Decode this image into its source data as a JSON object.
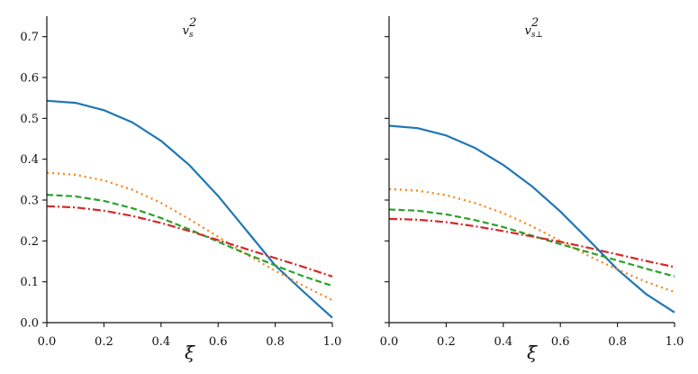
{
  "chart_data": [
    {
      "type": "line",
      "title": "v_s^2",
      "title_main": "v",
      "title_sub": "s",
      "title_sup": "2",
      "xlabel": "ξ̄",
      "ylabel": "",
      "xlim": [
        0,
        1
      ],
      "ylim": [
        0,
        0.75
      ],
      "xticks": [
        "0.0",
        "0.2",
        "0.4",
        "0.6",
        "0.8",
        "1.0"
      ],
      "yticks": [
        "0.0",
        "0.1",
        "0.2",
        "0.3",
        "0.4",
        "0.5",
        "0.6",
        "0.7"
      ],
      "grid": false,
      "legend": "none",
      "x": [
        0.0,
        0.1,
        0.2,
        0.3,
        0.4,
        0.5,
        0.6,
        0.7,
        0.8,
        0.9,
        1.0
      ],
      "series": [
        {
          "color": "#1f77b4",
          "style": "solid",
          "values": [
            0.543,
            0.538,
            0.52,
            0.49,
            0.445,
            0.385,
            0.31,
            0.225,
            0.14,
            0.075,
            0.012
          ]
        },
        {
          "color": "#ff7f0e",
          "style": "dotted",
          "values": [
            0.367,
            0.362,
            0.348,
            0.325,
            0.293,
            0.253,
            0.21,
            0.167,
            0.127,
            0.09,
            0.055
          ]
        },
        {
          "color": "#2ca02c",
          "style": "dashed",
          "values": [
            0.313,
            0.309,
            0.298,
            0.28,
            0.256,
            0.228,
            0.198,
            0.168,
            0.14,
            0.113,
            0.09
          ]
        },
        {
          "color": "#d62728",
          "style": "dashdot",
          "values": [
            0.285,
            0.282,
            0.274,
            0.261,
            0.244,
            0.224,
            0.202,
            0.18,
            0.158,
            0.136,
            0.113
          ]
        }
      ]
    },
    {
      "type": "line",
      "title": "v_s⊥^2",
      "title_main": "v",
      "title_sub": "s⊥",
      "title_sup": "2",
      "xlabel": "ξ̄",
      "ylabel": "",
      "xlim": [
        0,
        1
      ],
      "ylim": [
        0,
        0.75
      ],
      "xticks": [
        "0.0",
        "0.2",
        "0.4",
        "0.6",
        "0.8",
        "1.0"
      ],
      "yticks": [],
      "grid": false,
      "legend": "none",
      "x": [
        0.0,
        0.1,
        0.2,
        0.3,
        0.4,
        0.5,
        0.6,
        0.7,
        0.8,
        0.9,
        1.0
      ],
      "series": [
        {
          "color": "#1f77b4",
          "style": "solid",
          "values": [
            0.482,
            0.476,
            0.458,
            0.428,
            0.386,
            0.334,
            0.272,
            0.202,
            0.13,
            0.07,
            0.025
          ]
        },
        {
          "color": "#ff7f0e",
          "style": "dotted",
          "values": [
            0.327,
            0.323,
            0.312,
            0.293,
            0.268,
            0.236,
            0.2,
            0.163,
            0.13,
            0.1,
            0.075
          ]
        },
        {
          "color": "#2ca02c",
          "style": "dashed",
          "values": [
            0.277,
            0.274,
            0.265,
            0.251,
            0.234,
            0.213,
            0.192,
            0.172,
            0.152,
            0.132,
            0.113
          ]
        },
        {
          "color": "#d62728",
          "style": "dashdot",
          "values": [
            0.254,
            0.252,
            0.246,
            0.236,
            0.224,
            0.211,
            0.198,
            0.183,
            0.167,
            0.151,
            0.136
          ]
        }
      ]
    }
  ]
}
